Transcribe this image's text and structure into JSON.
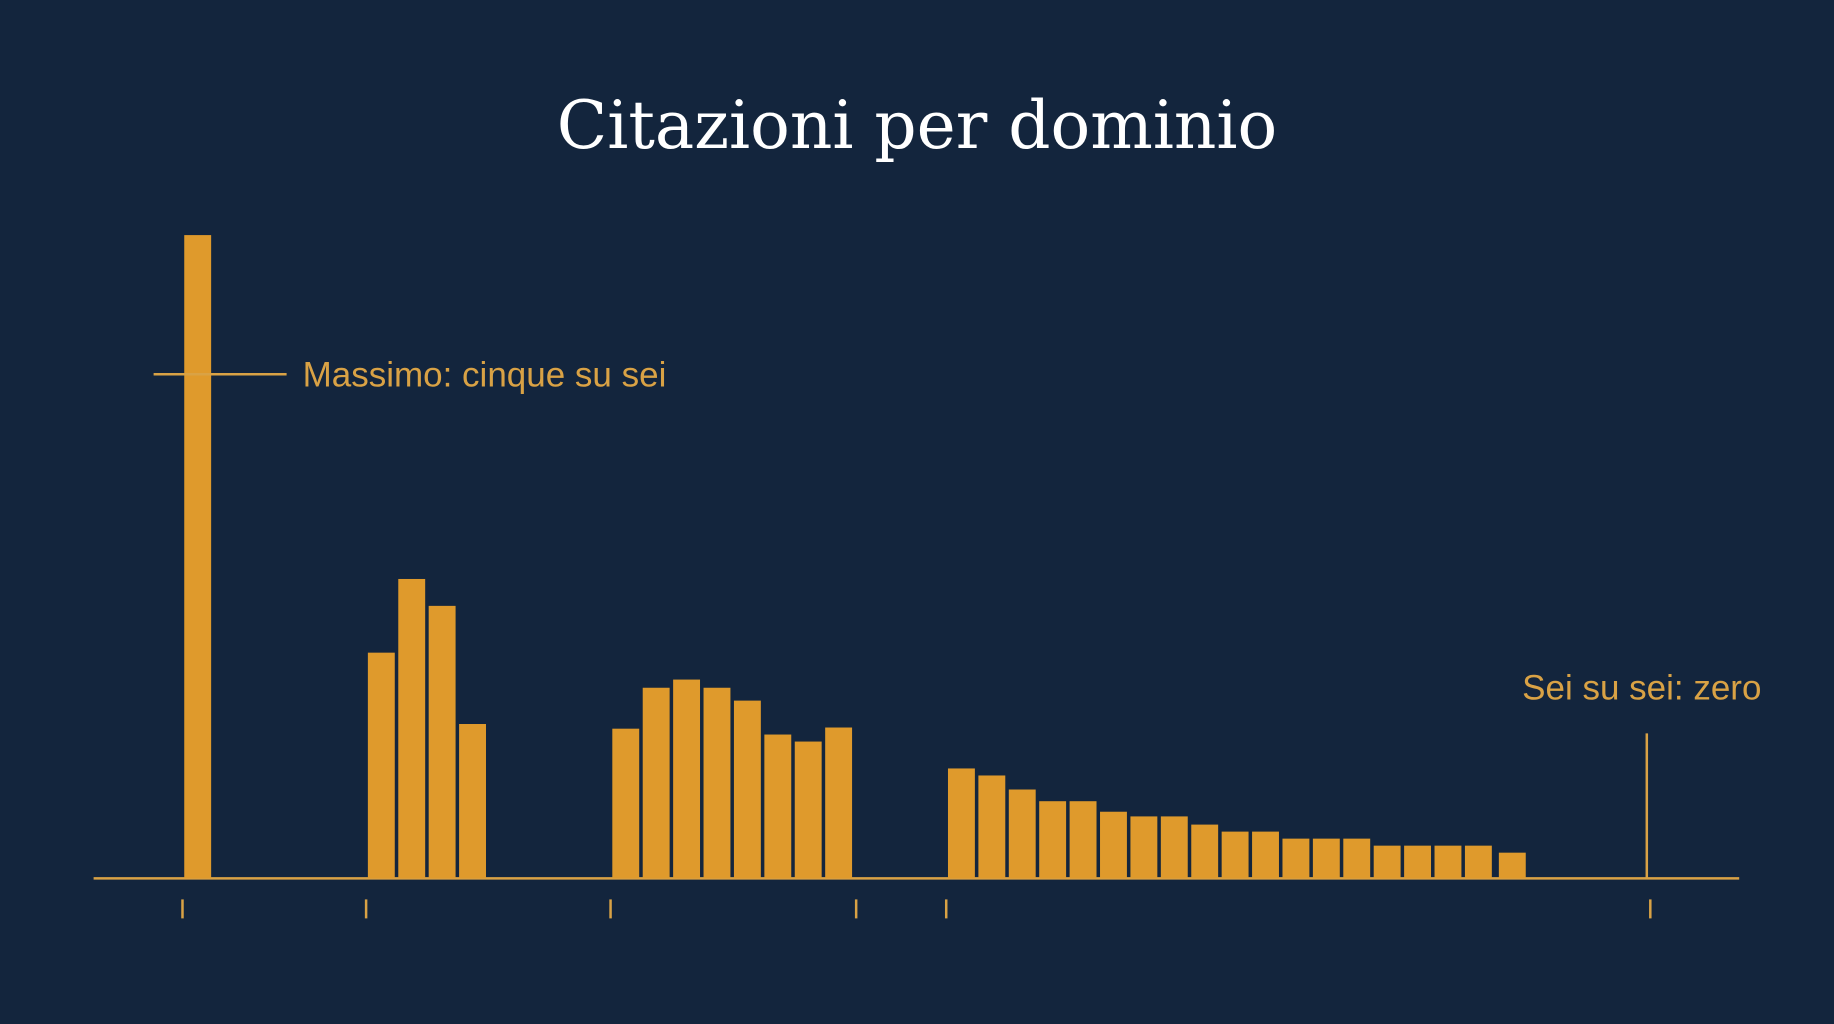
{
  "chart_data": {
    "type": "bar",
    "title": "Citazioni per dominio",
    "color": "#df9a2c",
    "x": [
      89,
      246,
      272,
      298,
      324,
      455,
      481,
      507,
      533,
      559,
      585,
      611,
      637,
      742,
      768,
      794,
      820,
      846,
      872,
      898,
      924,
      950,
      976,
      1002,
      1028,
      1054,
      1080,
      1106,
      1132,
      1158,
      1184,
      1213
    ],
    "values": [
      550,
      193,
      256,
      233,
      132,
      128,
      163,
      170,
      163,
      152,
      123,
      117,
      129,
      94,
      88,
      76,
      66,
      66,
      57,
      53,
      53,
      46,
      40,
      40,
      34,
      34,
      34,
      28,
      28,
      28,
      28,
      22
    ],
    "xlim": [
      0,
      1407
    ],
    "ylim": [
      0,
      570
    ],
    "xticks": [
      76,
      233,
      442,
      652,
      729,
      1331
    ],
    "annotations": [
      {
        "text": "Massimo: cinque su sei",
        "y": 431
      },
      {
        "text": "Sei su sei: zero",
        "x": 1328,
        "y": 124
      }
    ]
  }
}
